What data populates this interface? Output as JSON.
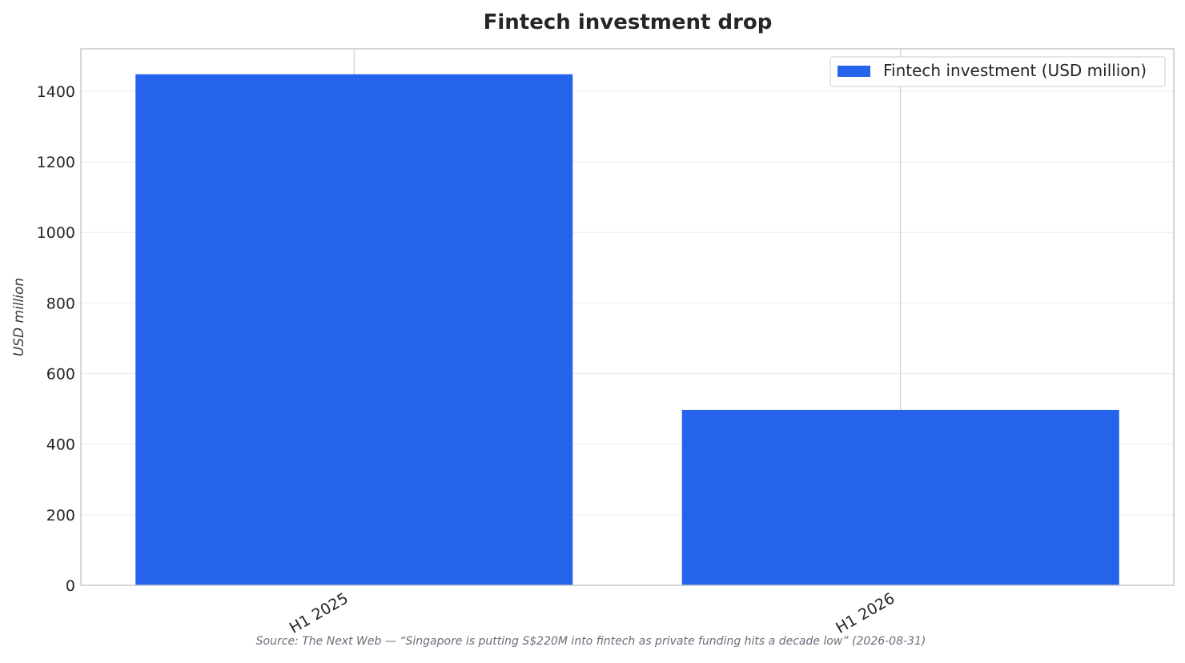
{
  "chart_data": {
    "type": "bar",
    "title": "Fintech investment drop",
    "categories": [
      "H1 2025",
      "H1 2026"
    ],
    "series": [
      {
        "name": "Fintech investment (USD million)",
        "values": [
          1448,
          497
        ]
      }
    ],
    "xlabel": "",
    "ylabel": "USD million",
    "ylim": [
      0,
      1520
    ],
    "yticks": [
      0,
      200,
      400,
      600,
      800,
      1000,
      1200,
      1400
    ],
    "grid": true,
    "legend": "top-right",
    "colors": {
      "bar": "#2563eb",
      "grid": "#ebebeb",
      "axis": "#c8c8c8",
      "text": "#262626"
    }
  },
  "source_note": "Source: The Next Web — “Singapore is putting S$220M into fintech as private funding hits a decade low” (2026-08-31)"
}
